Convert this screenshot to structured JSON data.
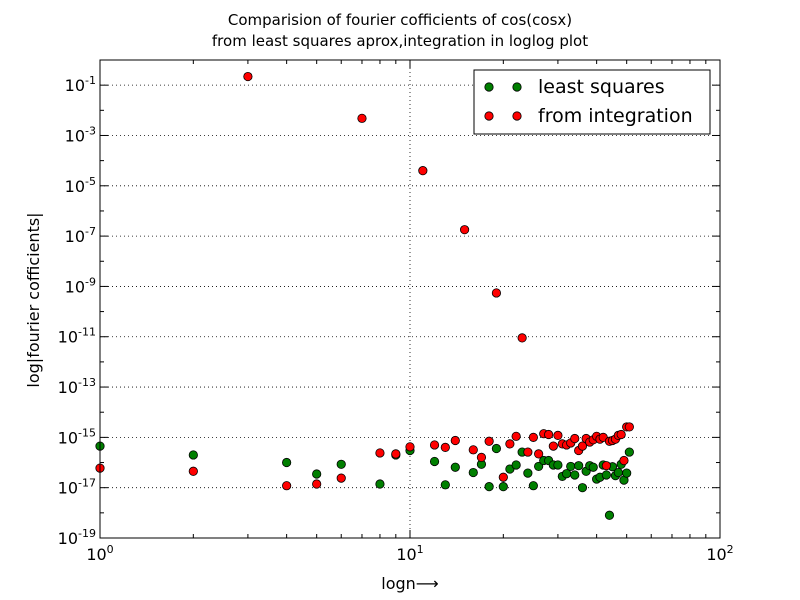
{
  "chart_data": {
    "type": "scatter",
    "title_line1": "Comparision of fourier cofficients of cos(cosx)",
    "title_line2": "from least squares aprox,integration in loglog plot",
    "xlabel": "logn⟶",
    "ylabel": "log|fourier cofficients|",
    "xscale": "log",
    "yscale": "log",
    "xlim": [
      1,
      100
    ],
    "ylim": [
      1e-19,
      1
    ],
    "x_ticks": [
      {
        "value": 1,
        "base": "10",
        "exp": "0"
      },
      {
        "value": 10,
        "base": "10",
        "exp": "1"
      },
      {
        "value": 100,
        "base": "10",
        "exp": "2"
      }
    ],
    "y_ticks": [
      {
        "value": 0.1,
        "base": "10",
        "exp": "-1"
      },
      {
        "value": 0.001,
        "base": "10",
        "exp": "-3"
      },
      {
        "value": 1e-05,
        "base": "10",
        "exp": "-5"
      },
      {
        "value": 1e-07,
        "base": "10",
        "exp": "-7"
      },
      {
        "value": 1e-09,
        "base": "10",
        "exp": "-9"
      },
      {
        "value": 1e-11,
        "base": "10",
        "exp": "-11"
      },
      {
        "value": 1e-13,
        "base": "10",
        "exp": "-13"
      },
      {
        "value": 1e-15,
        "base": "10",
        "exp": "-15"
      },
      {
        "value": 1e-17,
        "base": "10",
        "exp": "-17"
      },
      {
        "value": 1e-19,
        "base": "10",
        "exp": "-19"
      }
    ],
    "grid": true,
    "legend_position": "top-right",
    "series": [
      {
        "name": "least squares",
        "color": "#007f00",
        "x": [
          1,
          2,
          4,
          5,
          6,
          8,
          9,
          10,
          12,
          13,
          14,
          16,
          17,
          18,
          19,
          20,
          21,
          22,
          23,
          24,
          25,
          26,
          27,
          28,
          29,
          30,
          31,
          32,
          33,
          34,
          35,
          36,
          37,
          38,
          39,
          40,
          41,
          42,
          43,
          44,
          45,
          46,
          47,
          48,
          49,
          50,
          51
        ],
        "y": [
          4.5e-16,
          2e-16,
          1e-16,
          3.5e-17,
          8.5e-17,
          1.4e-17,
          2e-16,
          3e-16,
          1.1e-16,
          1.3e-17,
          6.5e-17,
          4e-17,
          8.5e-17,
          1.1e-17,
          3.6e-16,
          1.1e-17,
          5.5e-17,
          8e-17,
          2.6e-16,
          3.8e-17,
          1.2e-17,
          7e-17,
          1.2e-16,
          1.2e-16,
          8e-17,
          8e-17,
          2.8e-17,
          3.6e-17,
          7e-17,
          3.2e-17,
          7.5e-17,
          1e-17,
          4.5e-17,
          7.5e-17,
          6.5e-17,
          2.2e-17,
          2.6e-17,
          8e-17,
          3.2e-17,
          8e-19,
          6.8e-17,
          3e-17,
          4e-17,
          8.5e-17,
          2e-17,
          3.8e-17,
          2.6e-16
        ]
      },
      {
        "name": "from integration",
        "color": "#ff0000",
        "x": [
          1,
          2,
          3,
          4,
          5,
          6,
          7,
          8,
          9,
          10,
          11,
          12,
          13,
          14,
          15,
          16,
          17,
          18,
          19,
          20,
          21,
          22,
          23,
          24,
          25,
          26,
          27,
          28,
          29,
          30,
          31,
          32,
          33,
          34,
          35,
          36,
          37,
          38,
          39,
          40,
          41,
          42,
          43,
          44,
          45,
          46,
          47,
          48,
          49,
          50,
          51
        ],
        "y": [
          6e-17,
          4.5e-17,
          0.22,
          1.2e-17,
          1.4e-17,
          2.4e-17,
          0.0048,
          2.4e-16,
          2.2e-16,
          4.2e-16,
          4e-05,
          5e-16,
          4e-16,
          7.5e-16,
          1.8e-07,
          3.2e-16,
          1.6e-16,
          7e-16,
          5.5e-10,
          2.6e-17,
          5.5e-16,
          1.1e-15,
          9e-12,
          2.6e-16,
          1e-15,
          2.2e-16,
          1.4e-15,
          1.3e-15,
          4.5e-16,
          1.2e-15,
          5.5e-16,
          5e-16,
          6e-16,
          9e-16,
          3e-16,
          4.5e-16,
          9e-16,
          6.5e-16,
          8e-16,
          1.1e-15,
          8.5e-16,
          1e-15,
          7.5e-17,
          7e-16,
          7.5e-16,
          8.5e-16,
          1.2e-15,
          1.3e-15,
          1.2e-16,
          2.6e-15,
          2.6e-15
        ]
      }
    ]
  }
}
